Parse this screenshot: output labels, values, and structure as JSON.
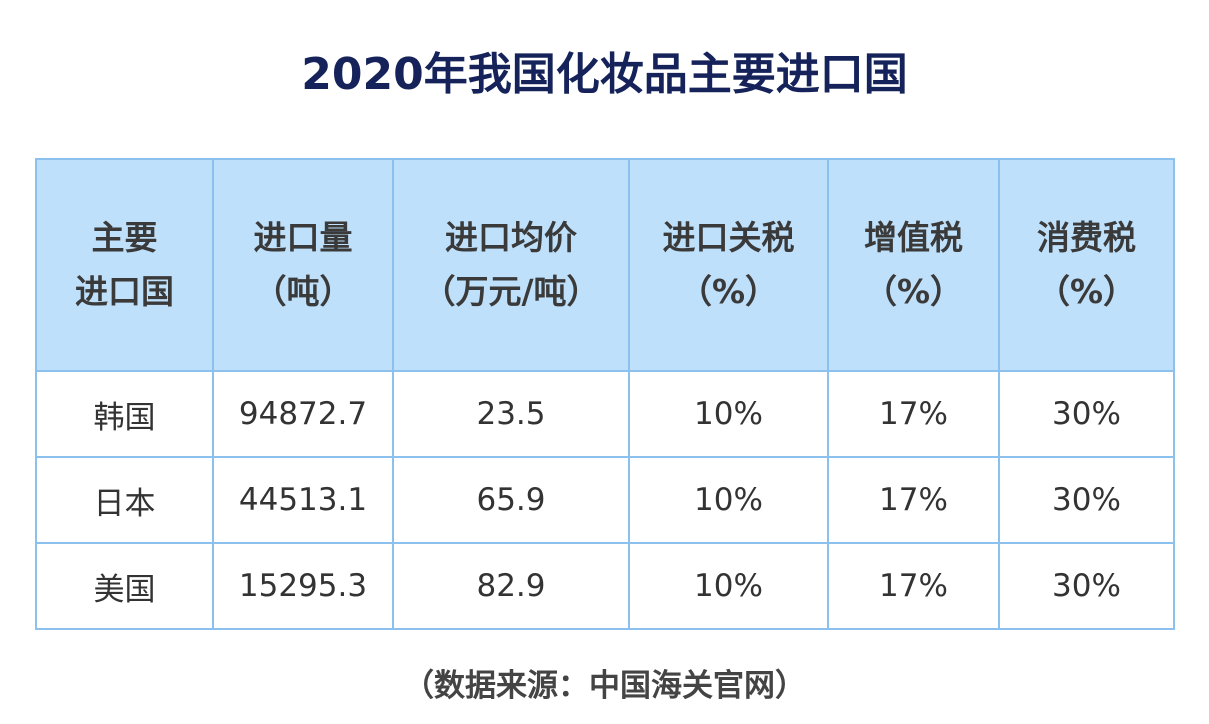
{
  "title": "2020年我国化妆品主要进口国",
  "table": {
    "header": [
      [
        "主要",
        "进口国"
      ],
      [
        "进口量",
        "（吨）"
      ],
      [
        "进口均价",
        "（万元/吨）"
      ],
      [
        "进口关税",
        "（%）"
      ],
      [
        "增值税",
        "（%）"
      ],
      [
        "消费税",
        "（%）"
      ]
    ],
    "rows": [
      [
        "韩国",
        "94872.7",
        "23.5",
        "10%",
        "17%",
        "30%"
      ],
      [
        "日本",
        "44513.1",
        "65.9",
        "10%",
        "17%",
        "30%"
      ],
      [
        "美国",
        "15295.3",
        "82.9",
        "10%",
        "17%",
        "30%"
      ]
    ]
  },
  "source": "（数据来源：中国海关官网）"
}
